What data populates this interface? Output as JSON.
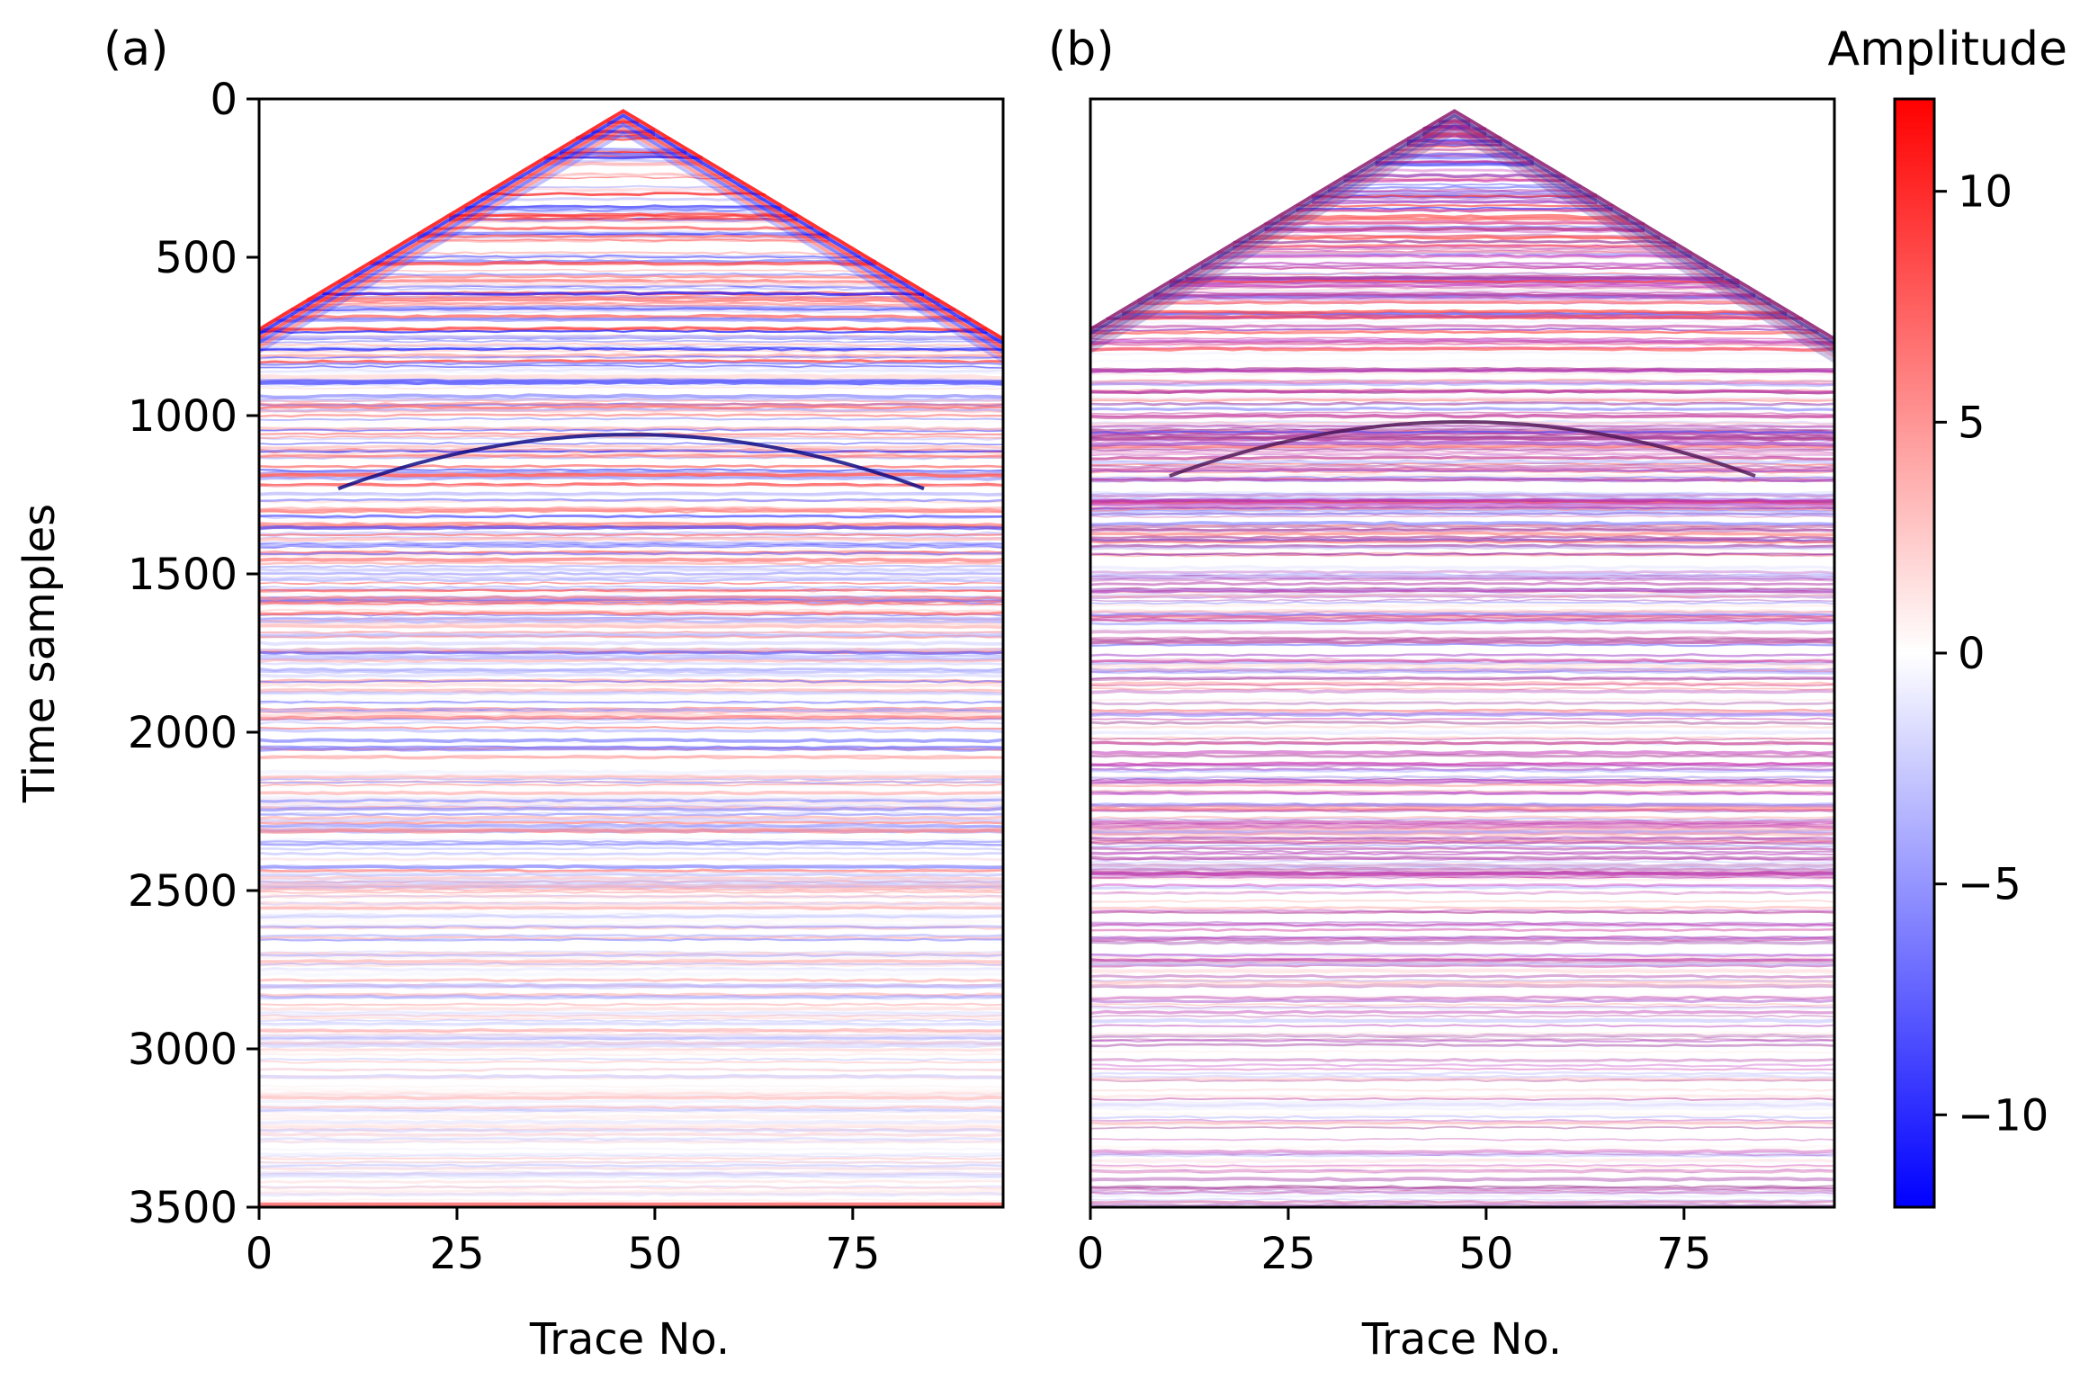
{
  "figure": {
    "panels": [
      {
        "label": "(a)",
        "xlabel": "Trace No.",
        "ylabel": "Time samples",
        "xticks": [
          "0",
          "25",
          "50",
          "75"
        ],
        "yticks": [
          "0",
          "500",
          "1000",
          "1500",
          "2000",
          "2500",
          "3000",
          "3500"
        ]
      },
      {
        "label": "(b)",
        "xlabel": "Trace No.",
        "ylabel": "",
        "xticks": [
          "0",
          "25",
          "50",
          "75"
        ],
        "yticks": []
      }
    ],
    "colorbar": {
      "title": "Amplitude",
      "ticks": [
        "10",
        "5",
        "0",
        "−5",
        "−10"
      ],
      "colors": {
        "high": "#ff0000",
        "mid": "#ffffff",
        "low": "#0000ff"
      }
    }
  },
  "chart_data": [
    {
      "type": "heatmap",
      "title": "(a)",
      "xlabel": "Trace No.",
      "ylabel": "Time samples",
      "xlim": [
        0,
        94
      ],
      "ylim": [
        3500,
        0
      ],
      "x_ticks": [
        0,
        25,
        50,
        75
      ],
      "y_ticks": [
        0,
        500,
        1000,
        1500,
        2000,
        2500,
        3000,
        3500
      ],
      "apex": {
        "trace": 46,
        "time_sample": 30
      },
      "first_break_at_edges": {
        "trace_0": 720,
        "trace_94": 720
      },
      "strong_event": {
        "trace": 47,
        "time_sample": 1060
      },
      "colormap": "bwr",
      "clim": [
        -12,
        12
      ]
    },
    {
      "type": "heatmap",
      "title": "(b)",
      "xlabel": "Trace No.",
      "ylabel": "",
      "xlim": [
        0,
        94
      ],
      "ylim": [
        3500,
        0
      ],
      "x_ticks": [
        0,
        25,
        50,
        75
      ],
      "y_ticks": [
        0,
        500,
        1000,
        1500,
        2000,
        2500,
        3000,
        3500
      ],
      "apex": {
        "trace": 46,
        "time_sample": 30
      },
      "first_break_at_edges": {
        "trace_0": 720,
        "trace_94": 720
      },
      "strong_event": {
        "trace": 47,
        "time_sample": 1020
      },
      "colormap": "bwr",
      "clim": [
        -12,
        12
      ]
    },
    {
      "type": "colorbar",
      "title": "Amplitude",
      "range": [
        -12,
        12
      ],
      "ticks": [
        10,
        5,
        0,
        -5,
        -10
      ],
      "colors": [
        "#0000ff",
        "#ffffff",
        "#ff0000"
      ]
    }
  ]
}
